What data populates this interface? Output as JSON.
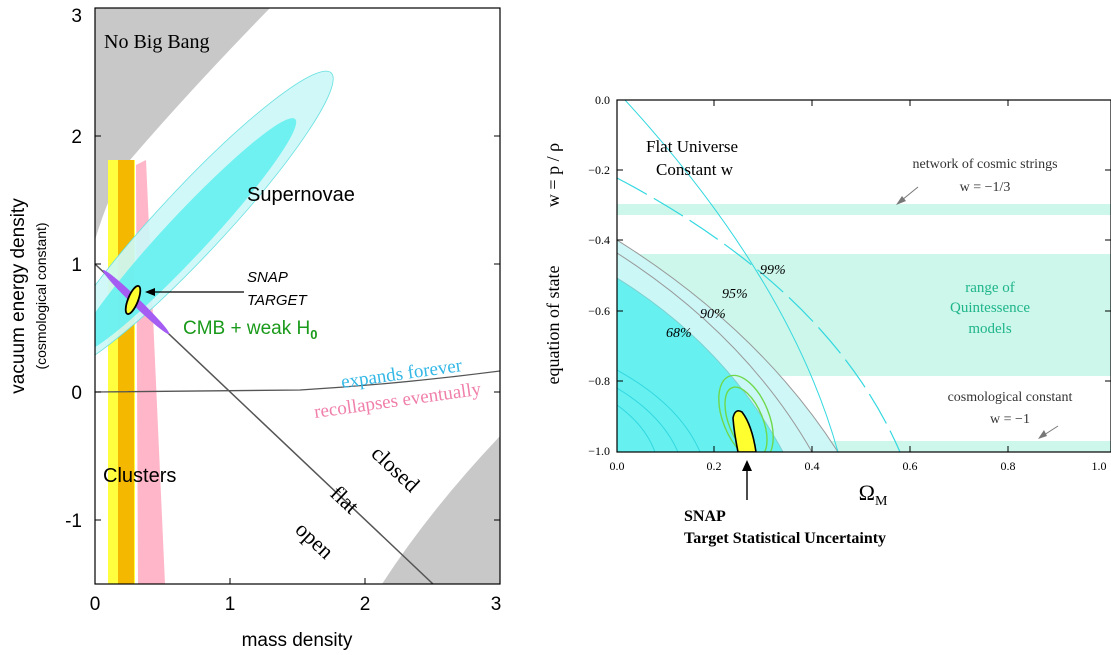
{
  "chart_data": [
    {
      "type": "contour",
      "xlabel": "mass density",
      "ylabel": "vacuum energy density",
      "ylabel_sub": "(cosmological constant)",
      "xlim": [
        0,
        3
      ],
      "ylim": [
        -1.5,
        3
      ],
      "x_ticks": [
        "0",
        "1",
        "2",
        "3"
      ],
      "y_ticks": [
        "-1",
        "0",
        "1",
        "2",
        "3"
      ],
      "regions": {
        "no_big_bang": "No Big Bang",
        "supernovae": "Supernovae",
        "clusters": "Clusters",
        "cmb": "CMB + weak H",
        "cmb_sub": "0",
        "snap_target_line1": "SNAP",
        "snap_target_line2": "TARGET"
      },
      "annotations": {
        "expands": "expands forever",
        "recollapses": "recollapses eventually",
        "closed": "closed",
        "flat": "flat",
        "open": "open"
      },
      "contours": [
        {
          "name": "Supernovae",
          "center": [
            0.72,
            1.28
          ],
          "semi_axes": [
            1.42,
            0.23
          ],
          "angle_deg": 47
        },
        {
          "name": "Supernovae",
          "center": [
            0.72,
            1.18
          ],
          "semi_axes": [
            1.12,
            0.15
          ],
          "angle_deg": 47
        },
        {
          "name": "Clusters",
          "x_range": [
            0.1,
            0.3
          ]
        },
        {
          "name": "CMB + weak H0",
          "center": [
            0.3,
            0.7
          ],
          "semi_axes": [
            0.33,
            0.03
          ],
          "angle_deg": -45
        },
        {
          "name": "SNAP TARGET",
          "center": [
            0.28,
            0.72
          ],
          "semi_axes": [
            0.11,
            0.03
          ],
          "angle_deg": 70
        }
      ],
      "colors": {
        "no_big_bang": "#c8c8c8",
        "sn_outer": "#ccf7f7",
        "sn_inner": "#66f0f0",
        "clusters_outer": "#ffff40",
        "clusters_inner": "#f5b800",
        "cmb": "#ffb6c8",
        "snap": "#a45cf2",
        "expands": "#33b8e6",
        "recollapses": "#f07faa",
        "cmb_label": "#1a9a1a"
      }
    },
    {
      "type": "contour",
      "title_line1": "Flat Universe",
      "title_line2": "Constant w",
      "xlabel": "Ω",
      "xlabel_sub": "M",
      "ylabel_left": "equation of state",
      "ylabel_right": "w = p / ρ",
      "xlim": [
        0,
        1
      ],
      "ylim": [
        -1,
        0
      ],
      "x_ticks": [
        "0.0",
        "0.2",
        "0.4",
        "0.6",
        "0.8",
        "1.0"
      ],
      "y_ticks": [
        "0.0",
        "−0.2",
        "−0.4",
        "−0.6",
        "−0.8",
        "−1.0"
      ],
      "bands": [
        {
          "name": "network of cosmic strings",
          "label_line1": "network of cosmic strings",
          "label_line2": "w = −1/3",
          "w_range": [
            -0.333,
            -0.31
          ]
        },
        {
          "name": "range of Quintessence models",
          "label_line1": "range of",
          "label_line2": "Quintessence",
          "label_line3": "models",
          "w_range": [
            -0.78,
            -0.44
          ]
        },
        {
          "name": "cosmological constant",
          "label_line1": "cosmological constant",
          "label_line2": "w = −1",
          "w_range": [
            -1.0,
            -0.975
          ]
        }
      ],
      "confidence_levels": [
        "68%",
        "90%",
        "95%",
        "99%"
      ],
      "snap": {
        "line1": "SNAP",
        "line2": "Target Statistical Uncertainty",
        "center": [
          0.28,
          -0.95
        ]
      },
      "colors": {
        "band": "#ccf7ea",
        "c68": "#66f0f0",
        "c90": "#ccf7f7",
        "snap": "#ffff30",
        "lime": "#6fd84a"
      }
    }
  ]
}
